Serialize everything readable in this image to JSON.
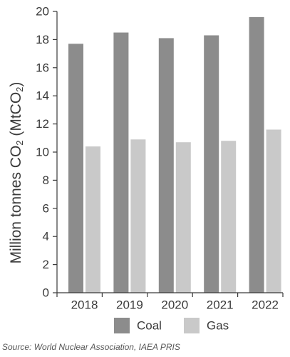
{
  "chart_data": {
    "type": "bar",
    "categories": [
      "2018",
      "2019",
      "2020",
      "2021",
      "2022"
    ],
    "series": [
      {
        "name": "Coal",
        "values": [
          17.7,
          18.5,
          18.1,
          18.3,
          19.6
        ],
        "color": "#8c8c8c"
      },
      {
        "name": "Gas",
        "values": [
          10.4,
          10.9,
          10.7,
          10.8,
          11.6
        ],
        "color": "#c9c9c9"
      }
    ],
    "ylabel_main": "Million tonnes CO",
    "ylabel_sub": "2",
    "ylabel_paren": " (MtCO",
    "ylabel_paren_sub": "2",
    "ylabel_close": ")",
    "ylim": [
      0,
      20
    ],
    "yticks": [
      "0",
      "2",
      "4",
      "6",
      "8",
      "10",
      "12",
      "14",
      "16",
      "18",
      "20"
    ],
    "grid": false,
    "legend_position": "bottom"
  },
  "source": "Source: World Nuclear Association, IAEA PRIS"
}
